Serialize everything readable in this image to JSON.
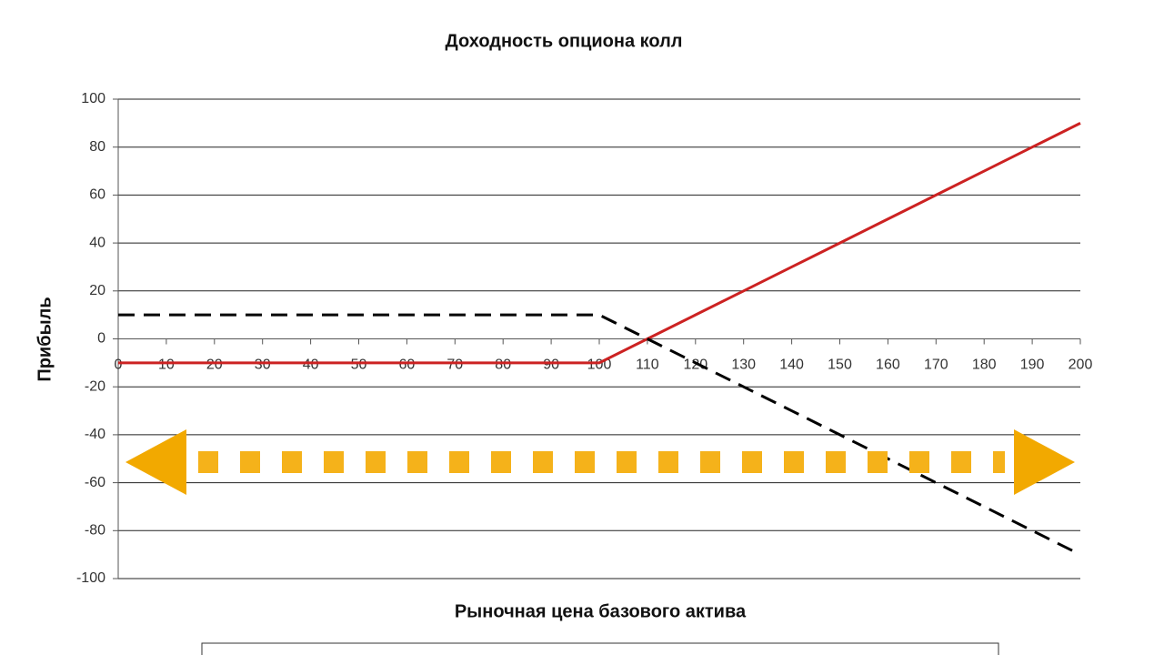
{
  "chart_data": {
    "type": "line",
    "title": "Доходность опциона колл",
    "xlabel": "Рыночная цена базового актива",
    "ylabel": "Прибыль",
    "x": [
      0,
      10,
      20,
      30,
      40,
      50,
      60,
      70,
      80,
      90,
      100,
      110,
      120,
      130,
      140,
      150,
      160,
      170,
      180,
      190,
      200
    ],
    "series": [
      {
        "color": "#cc2222",
        "linestyle": "solid",
        "values": [
          -10,
          -10,
          -10,
          -10,
          -10,
          -10,
          -10,
          -10,
          -10,
          -10,
          -10,
          0,
          10,
          20,
          30,
          40,
          50,
          60,
          70,
          80,
          90
        ]
      },
      {
        "color": "#000000",
        "linestyle": "dashed",
        "values": [
          10,
          10,
          10,
          10,
          10,
          10,
          10,
          10,
          10,
          10,
          10,
          0,
          -10,
          -20,
          -30,
          -40,
          -50,
          -60,
          -70,
          -80,
          -90
        ]
      }
    ],
    "xlim": [
      0,
      200
    ],
    "xticks": [
      0,
      10,
      20,
      30,
      40,
      50,
      60,
      70,
      80,
      90,
      100,
      110,
      120,
      130,
      140,
      150,
      160,
      170,
      180,
      190,
      200
    ],
    "ylim": [
      -100,
      100
    ],
    "yticks": [
      -100,
      -80,
      -60,
      -40,
      -20,
      0,
      20,
      40,
      60,
      80,
      100
    ],
    "grid": true
  }
}
